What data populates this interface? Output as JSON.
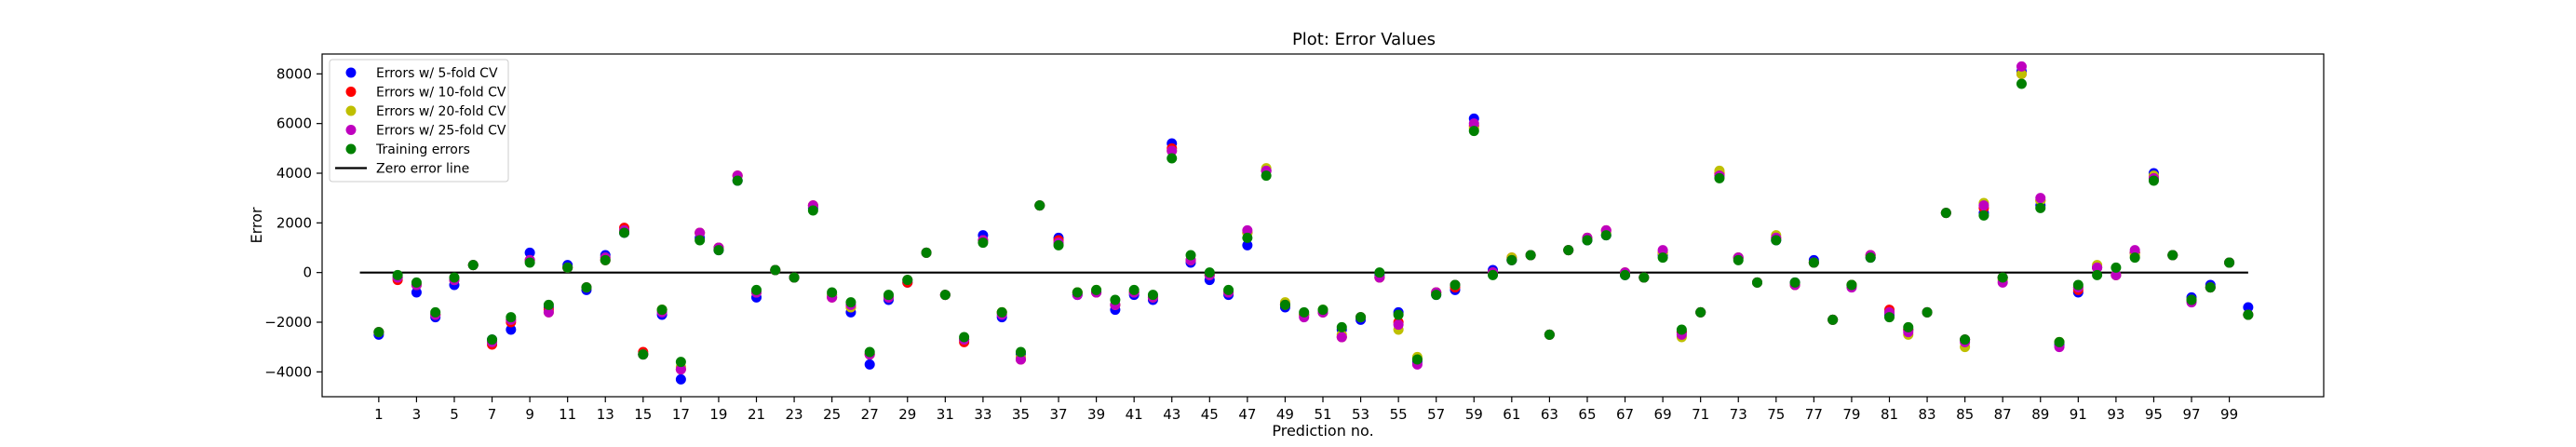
{
  "chart_data": {
    "type": "scatter",
    "title": "Plot: Error Values",
    "xlabel": "Prediction no.",
    "ylabel": "Error",
    "xlim": [
      -2,
      104
    ],
    "ylim": [
      -5000,
      8800
    ],
    "x_ticks": [
      1,
      3,
      5,
      7,
      9,
      11,
      13,
      15,
      17,
      19,
      21,
      23,
      25,
      27,
      29,
      31,
      33,
      35,
      37,
      39,
      41,
      43,
      45,
      47,
      49,
      51,
      53,
      55,
      57,
      59,
      61,
      63,
      65,
      67,
      69,
      71,
      73,
      75,
      77,
      79,
      81,
      83,
      85,
      87,
      89,
      91,
      93,
      95,
      97,
      99
    ],
    "y_ticks": [
      -4000,
      -2000,
      0,
      2000,
      4000,
      6000,
      8000
    ],
    "legend_position": "top-left",
    "grid": false,
    "reference_line": {
      "name": "Zero error line",
      "y": 0,
      "x_range": [
        0,
        100
      ],
      "color": "#000000"
    },
    "series": [
      {
        "name": "Errors w/ 5-fold CV",
        "color": "#0000ff",
        "values": [
          -2500,
          -200,
          -800,
          -1800,
          -500,
          300,
          -2700,
          -2300,
          800,
          -1400,
          300,
          -700,
          700,
          1600,
          -3300,
          -1700,
          -4300,
          1400,
          900,
          3700,
          -1000,
          100,
          -200,
          2600,
          -900,
          -1600,
          -3700,
          -1100,
          -400,
          800,
          -900,
          -2700,
          1500,
          -1800,
          -3300,
          2700,
          1400,
          -900,
          -800,
          -1500,
          -900,
          -1100,
          5200,
          400,
          -300,
          -900,
          1100,
          4100,
          -1400,
          -1700,
          -1600,
          -2300,
          -1900,
          -100,
          -1600,
          -3600,
          -900,
          -700,
          6200,
          100,
          500,
          700,
          -2500,
          900,
          1300,
          1500,
          -100,
          -200,
          700,
          -2400,
          -1600,
          3900,
          600,
          -400,
          1300,
          -400,
          500,
          -1900,
          -500,
          600,
          -1700,
          -2300,
          -1600,
          2400,
          -2700,
          2400,
          -200,
          8100,
          2700,
          -2900,
          -800,
          200,
          -100,
          800,
          4000,
          700,
          -1000,
          -500,
          400,
          -1400
        ]
      },
      {
        "name": "Errors w/ 10-fold CV",
        "color": "#ff0000",
        "values": [
          -2400,
          -300,
          -500,
          -1700,
          -300,
          300,
          -2900,
          -2000,
          500,
          -1500,
          200,
          -600,
          500,
          1800,
          -3200,
          -1500,
          -3900,
          1600,
          1000,
          3900,
          -800,
          100,
          -200,
          2700,
          -1000,
          -1400,
          -3300,
          -1000,
          -400,
          800,
          -900,
          -2800,
          1300,
          -1600,
          -3500,
          2700,
          1300,
          -800,
          -800,
          -1300,
          -800,
          -1000,
          5000,
          500,
          -100,
          -800,
          1600,
          4100,
          -1300,
          -1700,
          -1600,
          -2600,
          -1800,
          -200,
          -2000,
          -3500,
          -800,
          -600,
          5900,
          0,
          600,
          700,
          -2500,
          900,
          1400,
          1700,
          0,
          -200,
          800,
          -2400,
          -1600,
          4000,
          600,
          -400,
          1400,
          -500,
          400,
          -1900,
          -500,
          700,
          -1500,
          -2300,
          -1600,
          2400,
          -2700,
          2600,
          -200,
          8000,
          2900,
          -2800,
          -700,
          200,
          -100,
          800,
          3800,
          700,
          -1100,
          -600,
          400,
          -1700
        ]
      },
      {
        "name": "Errors w/ 20-fold CV",
        "color": "#bfbf00",
        "values": [
          -2400,
          -200,
          -500,
          -1700,
          -300,
          300,
          -2800,
          -1900,
          500,
          -1600,
          200,
          -600,
          600,
          1700,
          -3300,
          -1500,
          -3800,
          1600,
          1000,
          3900,
          -800,
          100,
          -200,
          2700,
          -900,
          -1400,
          -3300,
          -1000,
          -300,
          800,
          -900,
          -2700,
          1300,
          -1600,
          -3400,
          2700,
          1200,
          -800,
          -700,
          -1300,
          -800,
          -1000,
          4900,
          500,
          -100,
          -800,
          1600,
          4200,
          -1200,
          -1700,
          -1500,
          -2500,
          -1800,
          -200,
          -2300,
          -3400,
          -800,
          -500,
          5800,
          0,
          600,
          700,
          -2500,
          900,
          1400,
          1600,
          0,
          -200,
          800,
          -2600,
          -1600,
          4100,
          600,
          -400,
          1500,
          -500,
          400,
          -1900,
          -500,
          700,
          -1600,
          -2500,
          -1600,
          2400,
          -3000,
          2800,
          -300,
          8000,
          2900,
          -2800,
          -600,
          300,
          -100,
          700,
          3900,
          700,
          -1100,
          -600,
          400,
          -1700
        ]
      },
      {
        "name": "Errors w/ 25-fold CV",
        "color": "#bf00bf",
        "values": [
          -2400,
          -200,
          -500,
          -1700,
          -300,
          300,
          -2800,
          -1900,
          500,
          -1600,
          200,
          -600,
          600,
          1700,
          -3300,
          -1600,
          -3900,
          1600,
          1000,
          3900,
          -800,
          100,
          -200,
          2700,
          -1000,
          -1300,
          -3300,
          -1000,
          -300,
          800,
          -900,
          -2700,
          1300,
          -1700,
          -3500,
          2700,
          1200,
          -900,
          -800,
          -1300,
          -800,
          -1000,
          4900,
          500,
          -100,
          -800,
          1700,
          4100,
          -1300,
          -1800,
          -1600,
          -2600,
          -1800,
          -200,
          -2100,
          -3700,
          -800,
          -500,
          6000,
          0,
          500,
          700,
          -2500,
          900,
          1400,
          1700,
          0,
          -200,
          900,
          -2500,
          -1600,
          3900,
          600,
          -400,
          1400,
          -500,
          400,
          -1900,
          -600,
          700,
          -1600,
          -2400,
          -1600,
          2400,
          -2800,
          2700,
          -400,
          8300,
          3000,
          -3000,
          -600,
          200,
          -100,
          900,
          3800,
          700,
          -1200,
          -600,
          400,
          -1700
        ]
      },
      {
        "name": "Training errors",
        "color": "#008000",
        "values": [
          -2400,
          -100,
          -400,
          -1600,
          -200,
          300,
          -2700,
          -1800,
          400,
          -1300,
          200,
          -600,
          500,
          1600,
          -3300,
          -1500,
          -3600,
          1300,
          900,
          3700,
          -700,
          100,
          -200,
          2500,
          -800,
          -1200,
          -3200,
          -900,
          -300,
          800,
          -900,
          -2600,
          1200,
          -1600,
          -3200,
          2700,
          1100,
          -800,
          -700,
          -1100,
          -700,
          -900,
          4600,
          700,
          0,
          -700,
          1400,
          3900,
          -1300,
          -1600,
          -1500,
          -2200,
          -1800,
          0,
          -1700,
          -3500,
          -900,
          -500,
          5700,
          -100,
          500,
          700,
          -2500,
          900,
          1300,
          1500,
          -100,
          -200,
          600,
          -2300,
          -1600,
          3800,
          500,
          -400,
          1300,
          -400,
          400,
          -1900,
          -500,
          600,
          -1800,
          -2200,
          -1600,
          2400,
          -2700,
          2300,
          -200,
          7600,
          2600,
          -2800,
          -500,
          -100,
          200,
          600,
          3700,
          700,
          -1100,
          -600,
          400,
          -1700
        ]
      }
    ]
  }
}
